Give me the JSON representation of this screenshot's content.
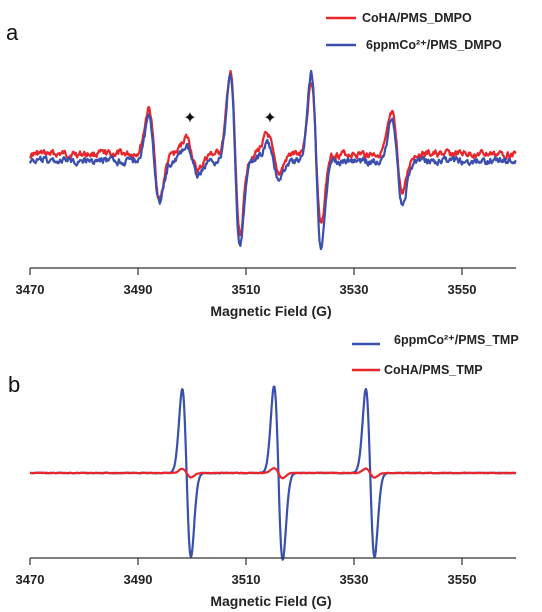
{
  "chart_data": [
    {
      "panel": "a",
      "type": "line",
      "xlabel": "Magnetic Field (G)",
      "ylabel": "",
      "xlim": [
        3470,
        3560
      ],
      "xticks": [
        3470,
        3490,
        3510,
        3530,
        3550
      ],
      "legend_position": "top-right",
      "annotations": [
        {
          "symbol": "✦",
          "x": 3500
        },
        {
          "symbol": "✦",
          "x": 3515
        }
      ],
      "series": [
        {
          "name": "CoHA/PMS_DMPO",
          "color": "#e8262b",
          "peaks": [
            {
              "x": 3493.0,
              "amp": 0.75,
              "width": 1.0
            },
            {
              "x": 3508.0,
              "amp": 1.35,
              "width": 0.9
            },
            {
              "x": 3523.0,
              "amp": 1.2,
              "width": 0.9
            },
            {
              "x": 3538.0,
              "amp": 0.65,
              "width": 1.0
            },
            {
              "x": 3500.0,
              "amp": 0.28,
              "width": 1.1
            },
            {
              "x": 3515.0,
              "amp": 0.32,
              "width": 1.1
            }
          ]
        },
        {
          "name": "6ppmCo²⁺/PMS_DMPO",
          "color": "#3a4fae",
          "peaks": [
            {
              "x": 3493.0,
              "amp": 0.7,
              "width": 1.0
            },
            {
              "x": 3508.0,
              "amp": 1.45,
              "width": 0.9
            },
            {
              "x": 3523.0,
              "amp": 1.45,
              "width": 0.9
            },
            {
              "x": 3538.0,
              "amp": 0.72,
              "width": 1.0
            },
            {
              "x": 3500.0,
              "amp": 0.22,
              "width": 1.1
            },
            {
              "x": 3515.0,
              "amp": 0.28,
              "width": 1.1
            }
          ]
        }
      ]
    },
    {
      "panel": "b",
      "type": "line",
      "xlabel": "Magnetic Field (G)",
      "ylabel": "",
      "xlim": [
        3470,
        3560
      ],
      "xticks": [
        3470,
        3490,
        3510,
        3530,
        3550
      ],
      "legend_position": "top-right",
      "series": [
        {
          "name": "6ppmCo²⁺/PMS_TMP",
          "color": "#3a4fae",
          "peaks": [
            {
              "x": 3499.0,
              "amp": 1.5,
              "width": 0.8
            },
            {
              "x": 3516.0,
              "amp": 1.55,
              "width": 0.8
            },
            {
              "x": 3533.0,
              "amp": 1.5,
              "width": 0.8
            }
          ]
        },
        {
          "name": "CoHA/PMS_TMP",
          "color": "#e8262b",
          "peaks": [
            {
              "x": 3499.0,
              "amp": 0.08,
              "width": 0.8
            },
            {
              "x": 3516.0,
              "amp": 0.09,
              "width": 0.8
            },
            {
              "x": 3533.0,
              "amp": 0.08,
              "width": 0.8
            }
          ]
        }
      ]
    }
  ]
}
